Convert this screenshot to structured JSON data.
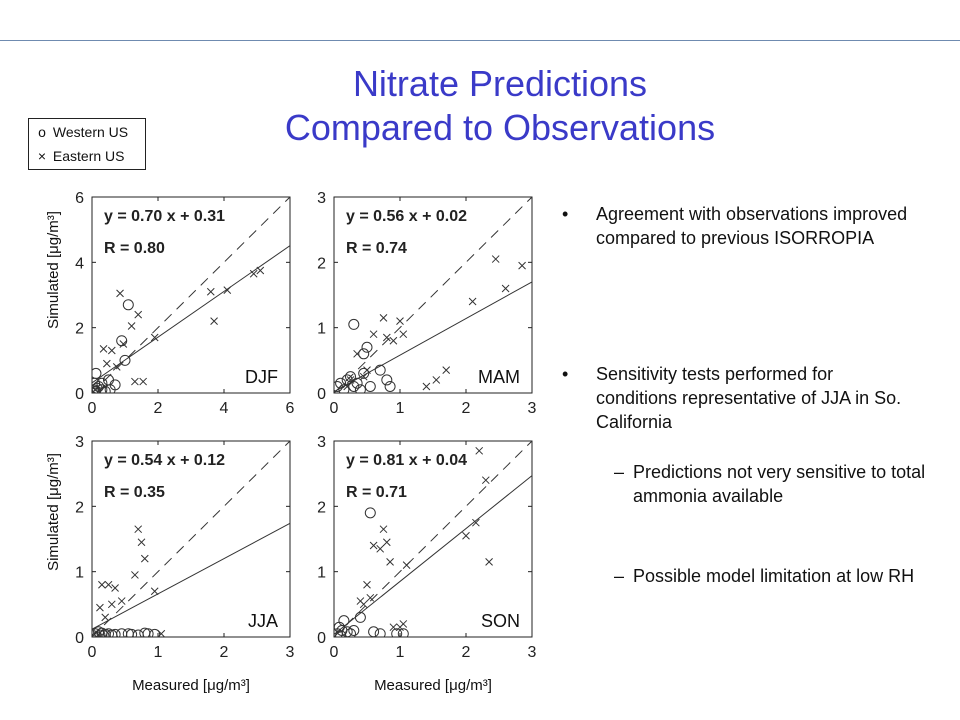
{
  "title": {
    "line1": "Nitrate Predictions",
    "line2": "Compared to Observations"
  },
  "legend": {
    "western": {
      "symbol": "o",
      "label": "Western US"
    },
    "eastern": {
      "symbol": "×",
      "label": "Eastern US"
    }
  },
  "bullets": [
    {
      "text": "Agreement with observations improved compared to previous ISORROPIA"
    },
    {
      "text": "Sensitivity tests performed for conditions representative of JJA in So. California",
      "subitems": [
        "Predictions not very sensitive to total ammonia available",
        "Possible model limitation at low RH"
      ]
    }
  ],
  "axis_labels": {
    "y": "Simulated [μg/m³]",
    "x": "Measured [μg/m³]"
  },
  "chart_data": [
    {
      "type": "scatter",
      "season": "DJF",
      "equation": "y = 0.70 x + 0.31",
      "r_text": "R = 0.80",
      "xlim": [
        0,
        6
      ],
      "ylim": [
        0,
        6
      ],
      "xticks": [
        0,
        2,
        4,
        6
      ],
      "yticks": [
        0,
        2,
        4,
        6
      ],
      "fit": {
        "slope": 0.7,
        "intercept": 0.31
      },
      "series": [
        {
          "name": "Western US",
          "marker": "circle",
          "x": [
            0.05,
            0.08,
            0.1,
            0.12,
            0.15,
            0.2,
            0.3,
            0.4,
            0.5,
            0.55,
            0.7,
            0.9,
            1.0,
            1.1,
            0.3,
            0.1
          ],
          "y": [
            0.1,
            0.3,
            0.05,
            0.6,
            0.15,
            0.2,
            0.3,
            0.05,
            0.4,
            0.1,
            0.25,
            1.6,
            1.0,
            2.7,
            0.1,
            0.0
          ]
        },
        {
          "name": "Eastern US",
          "marker": "x",
          "x": [
            0.35,
            0.45,
            0.6,
            0.75,
            0.85,
            0.95,
            1.2,
            1.3,
            1.4,
            1.55,
            1.9,
            3.6,
            3.7,
            4.1,
            4.9,
            5.1
          ],
          "y": [
            1.35,
            0.9,
            1.3,
            0.8,
            3.05,
            1.5,
            2.05,
            0.35,
            2.4,
            0.35,
            1.7,
            3.1,
            2.2,
            3.15,
            3.65,
            3.75
          ]
        }
      ]
    },
    {
      "type": "scatter",
      "season": "MAM",
      "equation": "y = 0.56 x + 0.02",
      "r_text": "R = 0.74",
      "xlim": [
        0,
        3
      ],
      "ylim": [
        0,
        3
      ],
      "xticks": [
        0,
        1,
        2,
        3
      ],
      "yticks": [
        0,
        1,
        2,
        3
      ],
      "fit": {
        "slope": 0.56,
        "intercept": 0.02
      },
      "series": [
        {
          "name": "Western US",
          "marker": "circle",
          "x": [
            0.05,
            0.1,
            0.15,
            0.2,
            0.25,
            0.3,
            0.35,
            0.4,
            0.45,
            0.5,
            0.55,
            0.7,
            0.8,
            0.85,
            0.3,
            0.45
          ],
          "y": [
            0.1,
            0.15,
            0.05,
            0.2,
            0.25,
            0.1,
            0.15,
            0.05,
            0.3,
            0.7,
            0.1,
            0.35,
            0.2,
            0.1,
            1.05,
            0.6
          ]
        },
        {
          "name": "Eastern US",
          "marker": "x",
          "x": [
            0.2,
            0.25,
            0.35,
            0.45,
            0.5,
            0.6,
            0.75,
            0.8,
            0.9,
            1.0,
            1.05,
            1.4,
            1.55,
            1.7,
            2.1,
            2.45,
            2.6,
            2.85
          ],
          "y": [
            0.1,
            0.2,
            0.6,
            0.25,
            0.35,
            0.9,
            1.15,
            0.85,
            0.8,
            1.1,
            0.9,
            0.1,
            0.2,
            0.35,
            1.4,
            2.05,
            1.6,
            1.95
          ]
        }
      ]
    },
    {
      "type": "scatter",
      "season": "JJA",
      "equation": "y = 0.54 x + 0.12",
      "r_text": "R = 0.35",
      "xlim": [
        0,
        3
      ],
      "ylim": [
        0,
        3
      ],
      "xticks": [
        0,
        1,
        2,
        3
      ],
      "yticks": [
        0,
        1,
        2,
        3
      ],
      "fit": {
        "slope": 0.54,
        "intercept": 0.12
      },
      "series": [
        {
          "name": "Western US",
          "marker": "circle",
          "x": [
            0.02,
            0.05,
            0.08,
            0.1,
            0.12,
            0.15,
            0.18,
            0.2,
            0.25,
            0.3,
            0.35,
            0.45,
            0.55,
            0.6,
            0.7,
            0.8,
            0.85,
            0.95
          ],
          "y": [
            0.02,
            0.05,
            0.0,
            0.08,
            0.03,
            0.06,
            0.02,
            0.04,
            0.05,
            0.03,
            0.04,
            0.05,
            0.05,
            0.04,
            0.03,
            0.06,
            0.05,
            0.04
          ]
        },
        {
          "name": "Eastern US",
          "marker": "x",
          "x": [
            0.12,
            0.15,
            0.2,
            0.25,
            0.3,
            0.35,
            0.45,
            0.65,
            0.7,
            0.75,
            0.8,
            0.95,
            1.05
          ],
          "y": [
            0.45,
            0.8,
            0.3,
            0.8,
            0.5,
            0.75,
            0.55,
            0.95,
            1.65,
            1.45,
            1.2,
            0.7,
            0.05
          ]
        }
      ]
    },
    {
      "type": "scatter",
      "season": "SON",
      "equation": "y = 0.81 x + 0.04",
      "r_text": "R = 0.71",
      "xlim": [
        0,
        3
      ],
      "ylim": [
        0,
        3
      ],
      "xticks": [
        0,
        1,
        2,
        3
      ],
      "yticks": [
        0,
        1,
        2,
        3
      ],
      "fit": {
        "slope": 0.81,
        "intercept": 0.04
      },
      "series": [
        {
          "name": "Western US",
          "marker": "circle",
          "x": [
            0.05,
            0.08,
            0.1,
            0.12,
            0.15,
            0.2,
            0.25,
            0.3,
            0.4,
            0.6,
            0.7,
            0.95,
            1.05,
            0.55
          ],
          "y": [
            0.05,
            0.15,
            0.02,
            0.1,
            0.25,
            0.08,
            0.05,
            0.1,
            0.3,
            0.08,
            0.05,
            0.05,
            0.05,
            1.9
          ]
        },
        {
          "name": "Eastern US",
          "marker": "x",
          "x": [
            0.4,
            0.45,
            0.5,
            0.55,
            0.6,
            0.7,
            0.75,
            0.8,
            0.85,
            0.9,
            1.0,
            1.05,
            1.1,
            2.0,
            2.15,
            2.2,
            2.3,
            2.35
          ],
          "y": [
            0.55,
            0.5,
            0.8,
            0.6,
            1.4,
            1.35,
            1.65,
            1.45,
            1.15,
            0.15,
            0.15,
            0.2,
            1.1,
            1.55,
            1.75,
            2.85,
            2.4,
            1.15
          ]
        }
      ]
    }
  ]
}
